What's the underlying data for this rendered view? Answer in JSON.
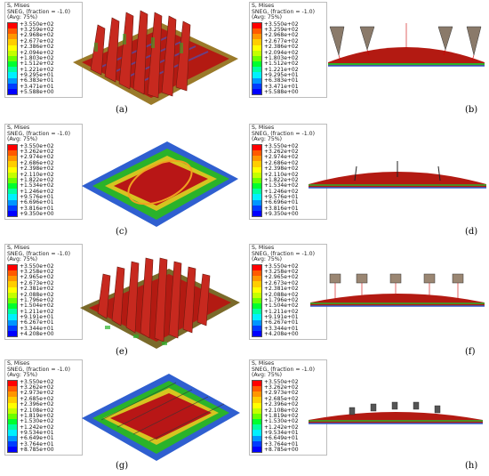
{
  "panels": [
    {
      "label": "(a)",
      "h1": "S, Mises",
      "h2": "SNEG, (fraction = -1.0)",
      "h3": "(Avg: 75%)",
      "values": [
        "+3.550e+02",
        "+3.259e+02",
        "+2.968e+02",
        "+2.677e+02",
        "+2.386e+02",
        "+2.094e+02",
        "+1.803e+02",
        "+1.512e+02",
        "+1.221e+02",
        "+9.295e+01",
        "+6.383e+01",
        "+3.471e+01",
        "+5.588e+00"
      ]
    },
    {
      "label": "(b)",
      "h1": "S, Mises",
      "h2": "SNEG, (fraction = -1.0)",
      "h3": "(Avg: 75%)",
      "values": [
        "+3.550e+02",
        "+3.259e+02",
        "+2.968e+02",
        "+2.677e+02",
        "+2.386e+02",
        "+2.094e+02",
        "+1.803e+02",
        "+1.512e+02",
        "+1.221e+02",
        "+9.295e+01",
        "+6.383e+01",
        "+3.471e+01",
        "+5.588e+00"
      ]
    },
    {
      "label": "(c)",
      "h1": "S, Mises",
      "h2": "SNEG, (fraction = -1.0)",
      "h3": "(Avg: 75%)",
      "values": [
        "+3.550e+02",
        "+3.262e+02",
        "+2.974e+02",
        "+2.686e+02",
        "+2.398e+02",
        "+2.110e+02",
        "+1.822e+02",
        "+1.534e+02",
        "+1.246e+02",
        "+9.576e+01",
        "+6.696e+01",
        "+3.816e+01",
        "+9.350e+00"
      ]
    },
    {
      "label": "(d)",
      "h1": "S, Mises",
      "h2": "SNEG, (fraction = -1.0)",
      "h3": "(Avg: 75%)",
      "values": [
        "+3.550e+02",
        "+3.262e+02",
        "+2.974e+02",
        "+2.686e+02",
        "+2.398e+02",
        "+2.110e+02",
        "+1.822e+02",
        "+1.534e+02",
        "+1.246e+02",
        "+9.576e+01",
        "+6.696e+01",
        "+3.816e+01",
        "+9.350e+00"
      ]
    },
    {
      "label": "(e)",
      "h1": "S, Mises",
      "h2": "SNEG, (fraction = -1.0)",
      "h3": "(Avg: 75%)",
      "values": [
        "+3.550e+02",
        "+3.258e+02",
        "+2.965e+02",
        "+2.673e+02",
        "+2.381e+02",
        "+2.088e+02",
        "+1.796e+02",
        "+1.504e+02",
        "+1.211e+02",
        "+9.191e+01",
        "+6.267e+01",
        "+3.344e+01",
        "+4.208e+00"
      ]
    },
    {
      "label": "(f)",
      "h1": "S, Mises",
      "h2": "SNEG, (fraction = -1.0)",
      "h3": "(Avg: 75%)",
      "values": [
        "+3.550e+02",
        "+3.258e+02",
        "+2.965e+02",
        "+2.673e+02",
        "+2.381e+02",
        "+2.088e+02",
        "+1.796e+02",
        "+1.504e+02",
        "+1.211e+02",
        "+9.191e+01",
        "+6.267e+01",
        "+3.344e+01",
        "+4.208e+00"
      ]
    },
    {
      "label": "(g)",
      "h1": "S, Mises",
      "h2": "SNEG, (fraction = -1.0)",
      "h3": "(Avg: 75%)",
      "values": [
        "+3.550e+02",
        "+3.262e+02",
        "+2.973e+02",
        "+2.685e+02",
        "+2.396e+02",
        "+2.108e+02",
        "+1.819e+02",
        "+1.530e+02",
        "+1.242e+02",
        "+9.534e+01",
        "+6.649e+01",
        "+3.764e+01",
        "+8.785e+00"
      ]
    },
    {
      "label": "(h)",
      "h1": "S, Mises",
      "h2": "SNEG, (fraction = -1.0)",
      "h3": "(Avg: 75%)",
      "values": [
        "+3.550e+02",
        "+3.262e+02",
        "+2.973e+02",
        "+2.685e+02",
        "+2.396e+02",
        "+2.108e+02",
        "+1.819e+02",
        "+1.530e+02",
        "+1.242e+02",
        "+9.534e+01",
        "+6.649e+01",
        "+3.764e+01",
        "+8.785e+00"
      ]
    }
  ],
  "colors": {
    "scale": [
      "#ff0000",
      "#ff5a00",
      "#ff9600",
      "#ffcd00",
      "#ffff00",
      "#c3ff00",
      "#6aff00",
      "#00ff2e",
      "#00ffa0",
      "#00f0ff",
      "#0096ff",
      "#003cff",
      "#0000ff"
    ],
    "stress_high": "#b81616",
    "stress_mid": "#2ab32a",
    "stress_low": "#2f5fd0",
    "shell": "#8c6a1e"
  }
}
